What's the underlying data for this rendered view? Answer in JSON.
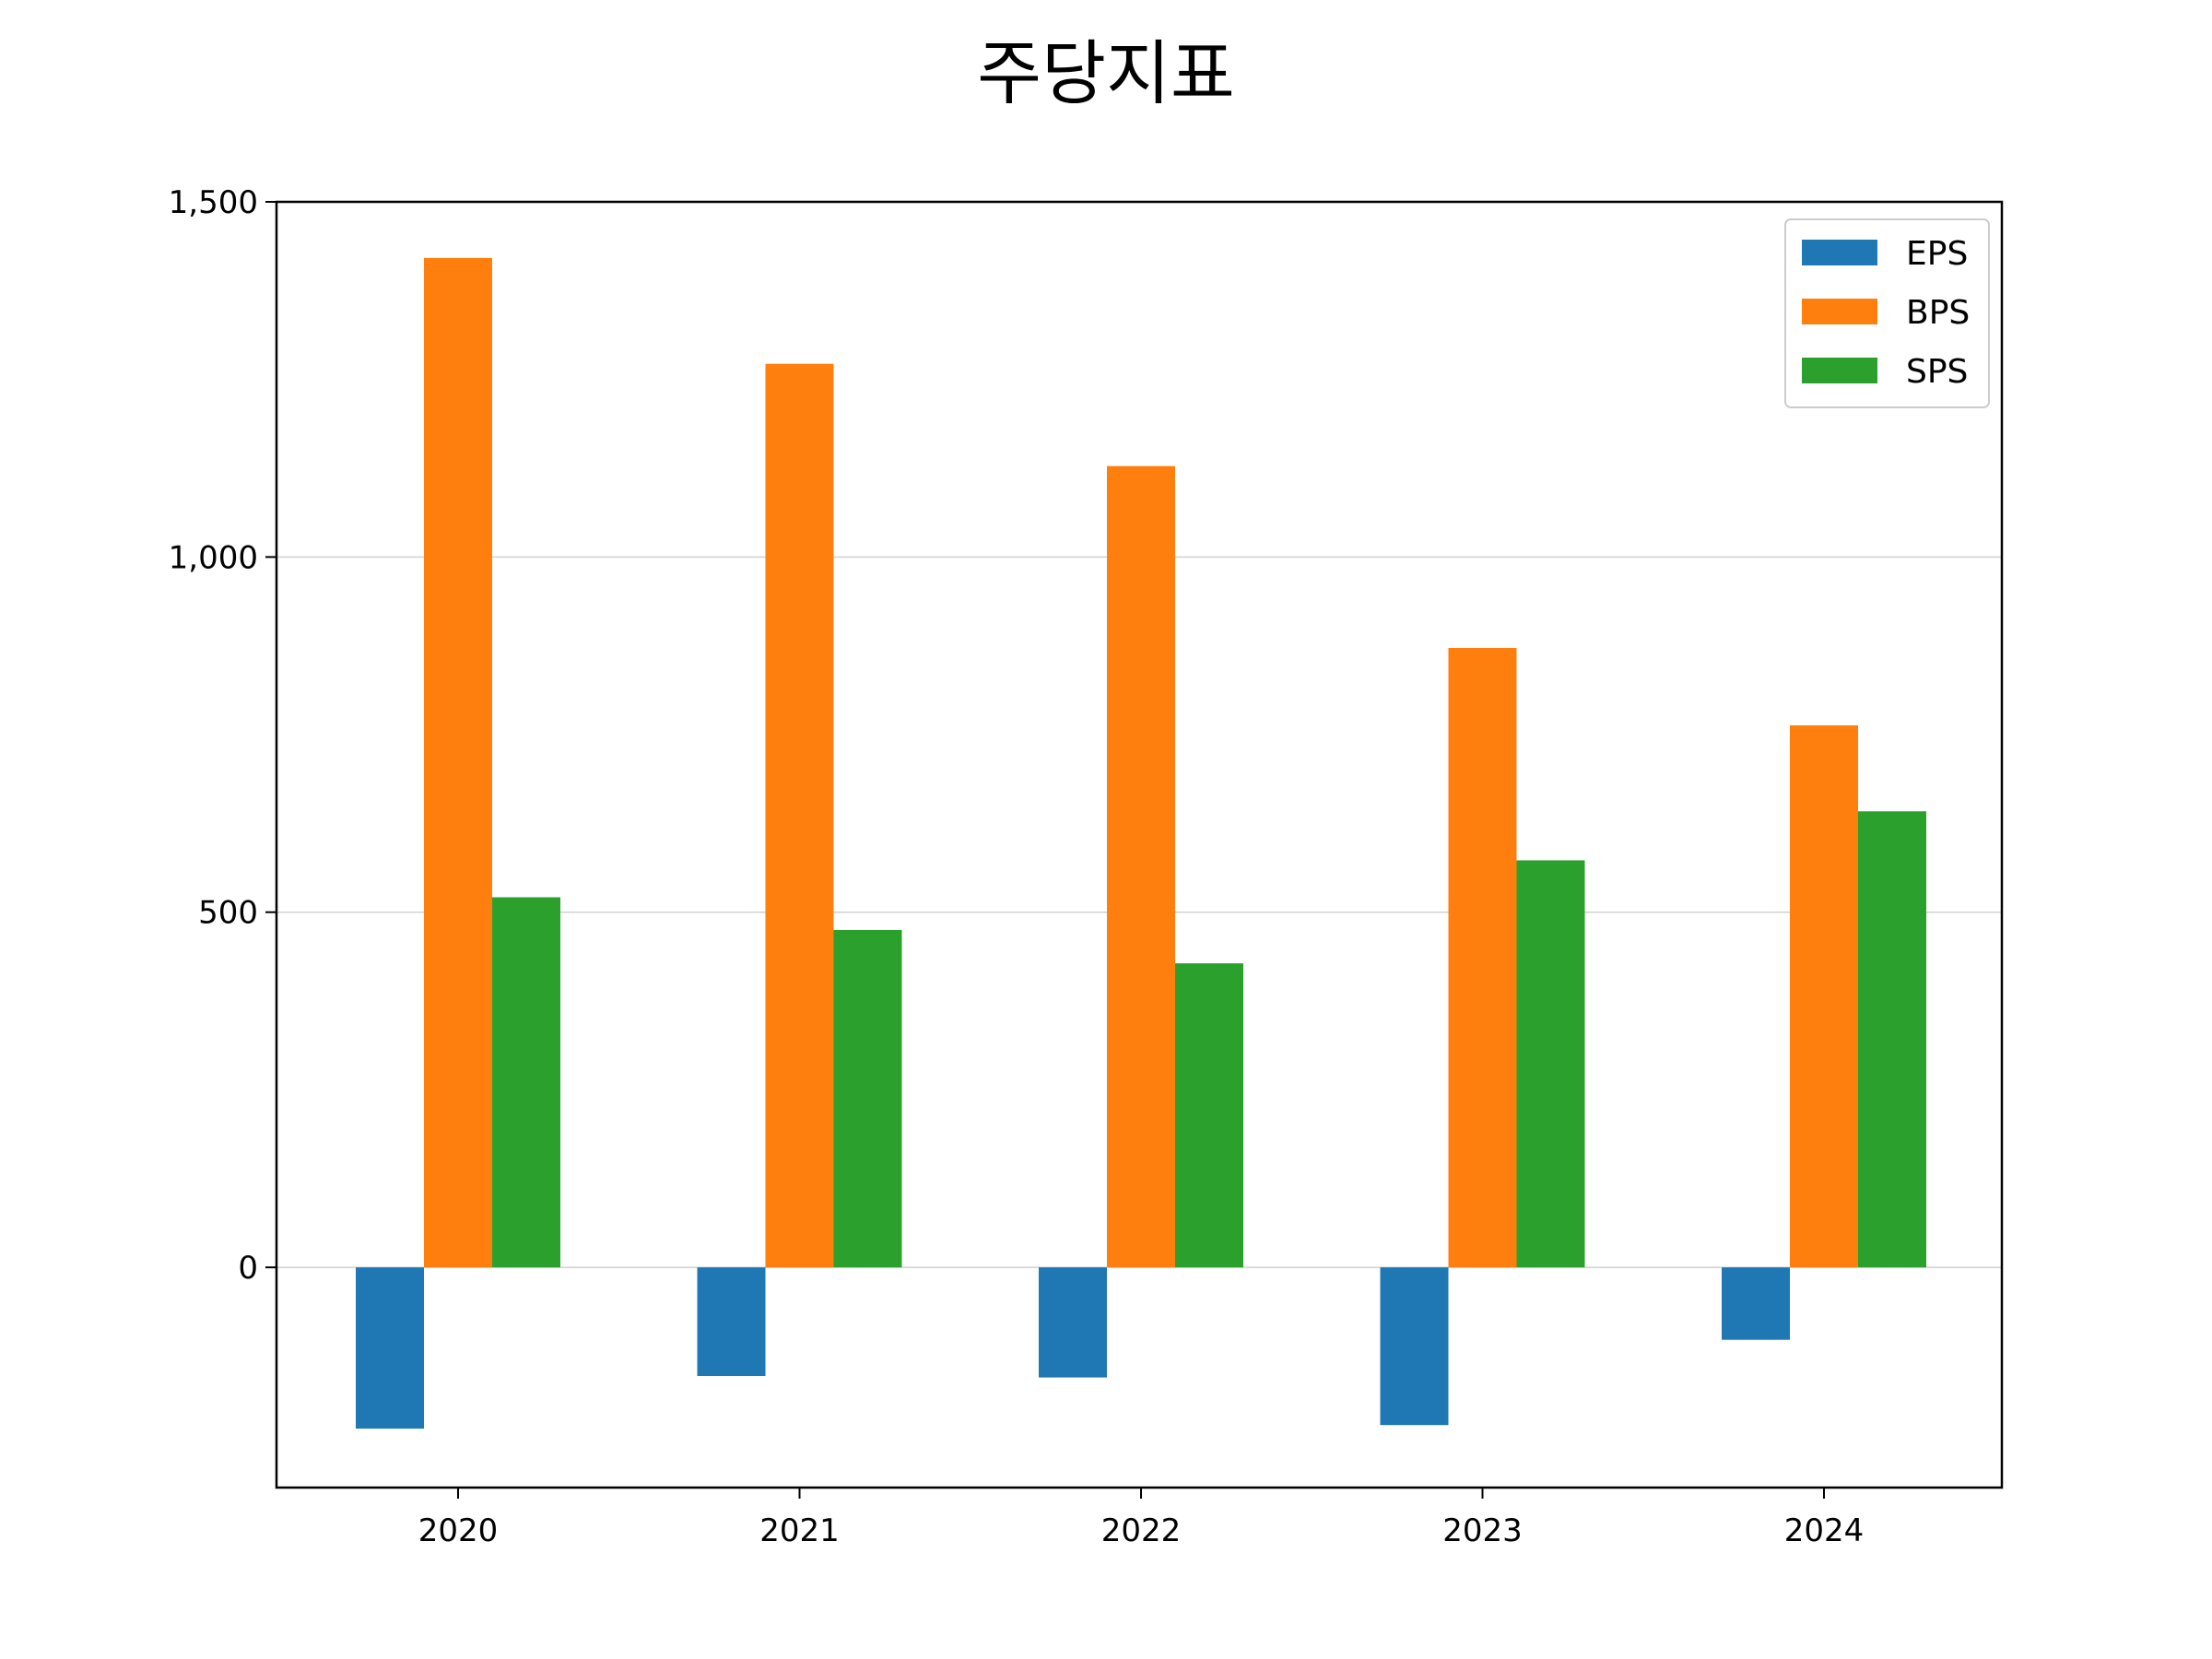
{
  "chart_data": {
    "type": "bar",
    "title": "주당지표",
    "xlabel": "",
    "ylabel": "",
    "categories": [
      "2020",
      "2021",
      "2022",
      "2023",
      "2024"
    ],
    "series": [
      {
        "name": "EPS",
        "color": "#1f77b4",
        "values": [
          -227,
          -153,
          -155,
          -222,
          -102
        ]
      },
      {
        "name": "BPS",
        "color": "#ff7f0e",
        "values": [
          1421,
          1272,
          1128,
          872,
          763
        ]
      },
      {
        "name": "SPS",
        "color": "#2ca02c",
        "values": [
          521,
          475,
          428,
          573,
          642
        ]
      }
    ],
    "ylim": [
      -310,
      1500
    ],
    "yticks": [
      0,
      500,
      1000,
      1500
    ],
    "ytick_labels": [
      "0",
      "500",
      "1,000",
      "1,500"
    ],
    "grid": "y-major",
    "legend_position": "top-right"
  }
}
